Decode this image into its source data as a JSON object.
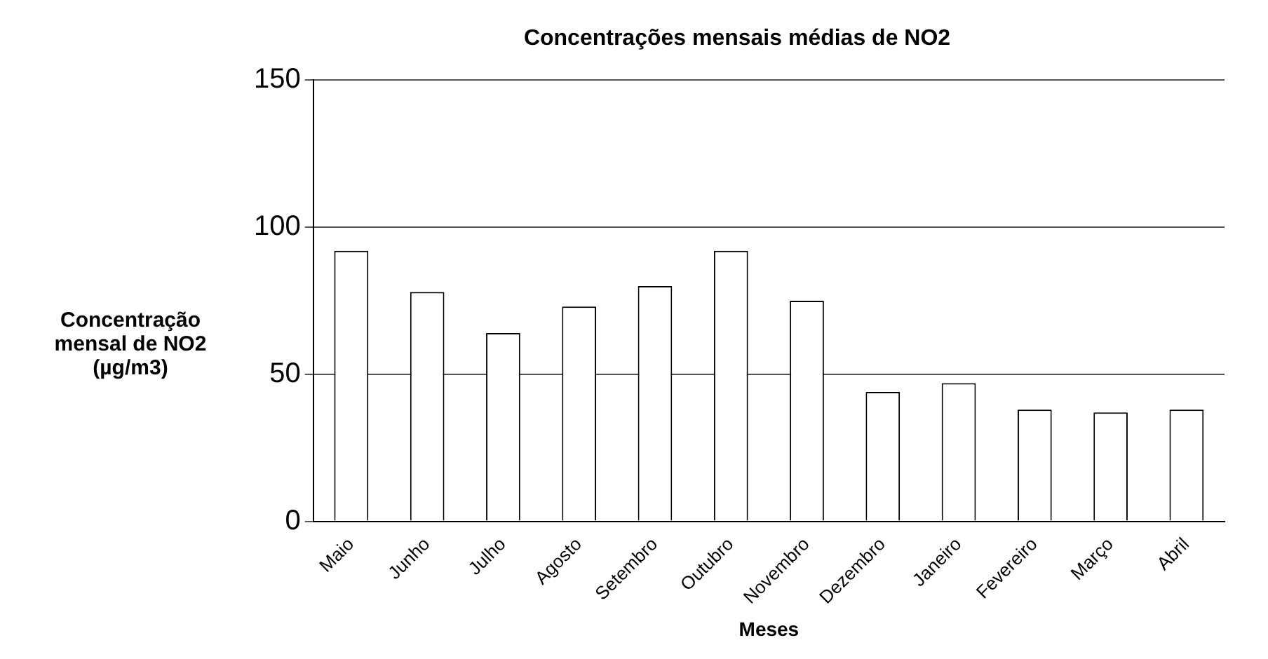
{
  "chart_data": {
    "type": "bar",
    "title": "Concentrações mensais médias de NO2",
    "xlabel": "Meses",
    "ylabel": "Concentração mensal de NO2 (µg/m3)",
    "categories": [
      "Maio",
      "Junho",
      "Julho",
      "Agosto",
      "Setembro",
      "Outubro",
      "Novembro",
      "Dezembro",
      "Janeiro",
      "Fevereiro",
      "Março",
      "Abril"
    ],
    "values": [
      92,
      78,
      64,
      73,
      80,
      92,
      75,
      44,
      47,
      38,
      37,
      38
    ],
    "color": "#ffffff",
    "ylim": [
      0,
      150
    ],
    "yticks": [
      0,
      50,
      100,
      150
    ],
    "grid": "y"
  }
}
